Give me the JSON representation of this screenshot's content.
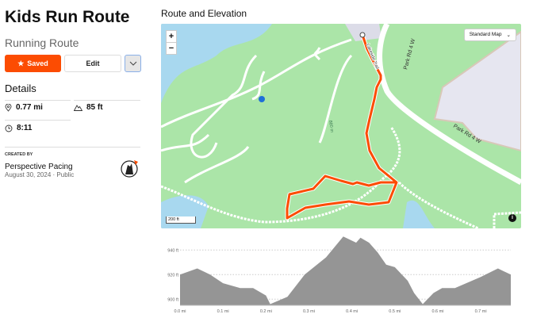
{
  "route": {
    "title": "Kids Run Route",
    "type": "Running Route"
  },
  "actions": {
    "saved": "Saved",
    "edit": "Edit",
    "more_icon": "chevron-down-icon"
  },
  "details": {
    "heading": "Details",
    "distance": "0.77 mi",
    "elevation": "85 ft",
    "time": "8:11"
  },
  "creator": {
    "label": "CREATED BY",
    "name": "Perspective Pacing",
    "date": "August 30, 2024",
    "visibility": "Public",
    "separator": "·"
  },
  "map": {
    "title": "Route and Elevation",
    "zoom_in": "+",
    "zoom_out": "−",
    "style_select": "Standard Map",
    "scale": "200 ft",
    "info": "i",
    "labels": {
      "road1": "Park Rd 4 W",
      "road2": "Park Rd 4 W",
      "trail": "Lakeside Trail",
      "contour1": "880 m"
    },
    "route_color": "#fc4c02"
  },
  "chart_data": {
    "type": "area",
    "xlabel": "",
    "ylabel": "",
    "x_ticks": [
      "0.0 mi",
      "0.1 mi",
      "0.2 mi",
      "0.3 mi",
      "0.4 mi",
      "0.5 mi",
      "0.6 mi",
      "0.7 mi"
    ],
    "y_ticks": [
      "900 ft",
      "920 ft",
      "940 ft"
    ],
    "xlim": [
      0,
      0.77
    ],
    "ylim": [
      895,
      955
    ],
    "grid": true,
    "color": "#959595",
    "x": [
      0,
      0.04,
      0.07,
      0.1,
      0.14,
      0.17,
      0.2,
      0.21,
      0.25,
      0.29,
      0.34,
      0.38,
      0.41,
      0.42,
      0.44,
      0.46,
      0.48,
      0.5,
      0.53,
      0.545,
      0.565,
      0.59,
      0.61,
      0.64,
      0.7,
      0.74,
      0.77
    ],
    "y": [
      920,
      925,
      920,
      913,
      909,
      909,
      903,
      896,
      902,
      920,
      934,
      951,
      946,
      950,
      946,
      938,
      928,
      926,
      915,
      905,
      896,
      905,
      909,
      909,
      918,
      925,
      920
    ]
  }
}
